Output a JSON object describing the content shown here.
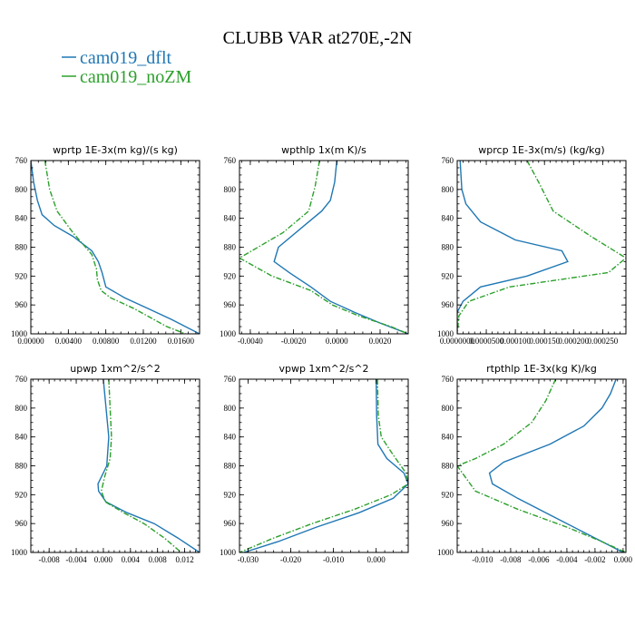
{
  "figure": {
    "title": "CLUBB VAR at270E,-2N",
    "legend": [
      {
        "label": "cam019_dflt",
        "color": "#1f77b4",
        "dash": "solid"
      },
      {
        "label": "cam019_noZM",
        "color": "#2ca02c",
        "dash": "dashdot"
      }
    ]
  },
  "chart_data": [
    {
      "type": "line",
      "title": "wprtp  1E-3x(m kg)/(s kg)",
      "xlim": [
        0,
        0.018
      ],
      "ylim": [
        760,
        1000
      ],
      "y_inverted": true,
      "xticks": [
        0,
        0.004,
        0.008,
        0.012,
        0.016
      ],
      "xtick_labels": [
        "0.00000",
        "0.00400",
        "0.00800",
        "0.01200",
        "0.01600"
      ],
      "yticks": [
        760,
        800,
        840,
        880,
        920,
        960,
        1000
      ],
      "series": [
        {
          "name": "cam019_dflt",
          "x": [
            0.0,
            0.0003,
            0.0007,
            0.0012,
            0.0025,
            0.0045,
            0.0065,
            0.0072,
            0.0076,
            0.008,
            0.01,
            0.0125,
            0.015,
            0.018
          ],
          "y": [
            760,
            790,
            815,
            835,
            850,
            865,
            885,
            900,
            915,
            935,
            950,
            965,
            980,
            1000
          ]
        },
        {
          "name": "cam019_noZM",
          "x": [
            0.0015,
            0.002,
            0.0028,
            0.0045,
            0.0065,
            0.007,
            0.0071,
            0.0075,
            0.0085,
            0.011,
            0.0145,
            0.0165
          ],
          "y": [
            760,
            800,
            830,
            860,
            890,
            910,
            925,
            940,
            950,
            965,
            990,
            1000
          ]
        }
      ]
    },
    {
      "type": "line",
      "title": "wpthlp  1x(m K)/s",
      "xlim": [
        -0.0045,
        0.0033
      ],
      "ylim": [
        760,
        1000
      ],
      "y_inverted": true,
      "xticks": [
        -0.004,
        -0.002,
        0.0,
        0.002
      ],
      "xtick_labels": [
        "-0.0040",
        "-0.0020",
        "0.0000",
        "0.0020"
      ],
      "yticks": [
        760,
        800,
        840,
        880,
        920,
        960,
        1000
      ],
      "series": [
        {
          "name": "cam019_dflt",
          "x": [
            0.0,
            -0.0001,
            -0.0003,
            -0.0007,
            -0.0015,
            -0.0027,
            -0.0029,
            -0.0022,
            -0.0012,
            -0.0003,
            0.0008,
            0.002,
            0.0033
          ],
          "y": [
            760,
            790,
            815,
            830,
            850,
            880,
            900,
            915,
            935,
            955,
            970,
            985,
            1000
          ]
        },
        {
          "name": "cam019_noZM",
          "x": [
            -0.0008,
            -0.001,
            -0.0013,
            -0.0025,
            -0.0045,
            -0.003,
            -0.0012,
            -0.0002,
            0.001,
            0.0025,
            0.0033
          ],
          "y": [
            760,
            795,
            830,
            860,
            895,
            920,
            940,
            960,
            975,
            990,
            1000
          ]
        }
      ]
    },
    {
      "type": "line",
      "title": "wprcp  1E-3x(m/s) (kg/kg)",
      "xlim": [
        0,
        0.00029
      ],
      "ylim": [
        760,
        1000
      ],
      "y_inverted": true,
      "xticks": [
        0,
        5e-05,
        0.0001,
        0.00015,
        0.0002,
        0.00025
      ],
      "xtick_labels": [
        "0.0000000",
        "0.0000500",
        "0.000100",
        "0.000150",
        "0.000200",
        "0.000250"
      ],
      "yticks": [
        760,
        800,
        840,
        880,
        920,
        960,
        1000
      ],
      "series": [
        {
          "name": "cam019_dflt",
          "x": [
            5e-06,
            8e-06,
            1.5e-05,
            4e-05,
            0.0001,
            0.00018,
            0.00019,
            0.00012,
            4e-05,
            1e-05,
            0.0,
            0.0
          ],
          "y": [
            760,
            800,
            820,
            845,
            870,
            885,
            900,
            920,
            935,
            955,
            970,
            1000
          ]
        },
        {
          "name": "cam019_noZM",
          "x": [
            0.00012,
            0.00014,
            0.000165,
            0.00023,
            0.00029,
            0.00026,
            9e-05,
            2e-05,
            3e-06,
            0.0
          ],
          "y": [
            760,
            790,
            830,
            865,
            895,
            915,
            935,
            955,
            975,
            1000
          ]
        }
      ]
    },
    {
      "type": "line",
      "title": "upwp  1xm^2/s^2",
      "xlim": [
        -0.0107,
        0.0142
      ],
      "ylim": [
        760,
        1000
      ],
      "y_inverted": true,
      "xticks": [
        -0.008,
        -0.004,
        0.0,
        0.004,
        0.008,
        0.012
      ],
      "xtick_labels": [
        "-0.008",
        "-0.004",
        "0.000",
        "0.004",
        "0.008",
        "0.012"
      ],
      "yticks": [
        760,
        800,
        840,
        880,
        920,
        960,
        1000
      ],
      "series": [
        {
          "name": "cam019_dflt",
          "x": [
            0.0,
            0.0004,
            0.0008,
            0.0005,
            -0.0008,
            -0.0007,
            0.0004,
            0.0035,
            0.0075,
            0.011,
            0.0142
          ],
          "y": [
            760,
            800,
            840,
            880,
            905,
            915,
            930,
            945,
            960,
            980,
            1000
          ]
        },
        {
          "name": "cam019_noZM",
          "x": [
            0.0008,
            0.001,
            0.0012,
            0.001,
            0.0002,
            -0.0003,
            0.0003,
            0.003,
            0.006,
            0.009,
            0.0115
          ],
          "y": [
            760,
            800,
            840,
            870,
            895,
            915,
            930,
            945,
            960,
            980,
            1000
          ]
        }
      ]
    },
    {
      "type": "line",
      "title": "vpwp  1xm^2/s^2",
      "xlim": [
        -0.032,
        0.0075
      ],
      "ylim": [
        760,
        1000
      ],
      "y_inverted": true,
      "xticks": [
        -0.03,
        -0.02,
        -0.01,
        0.0
      ],
      "xtick_labels": [
        "-0.030",
        "-0.020",
        "-0.010",
        "0.000"
      ],
      "yticks": [
        760,
        800,
        840,
        880,
        920,
        960,
        1000
      ],
      "series": [
        {
          "name": "cam019_dflt",
          "x": [
            0.0,
            0.0001,
            0.0004,
            0.0025,
            0.0065,
            0.0075,
            0.004,
            -0.004,
            -0.014,
            -0.023,
            -0.031
          ],
          "y": [
            760,
            810,
            850,
            870,
            890,
            905,
            925,
            945,
            965,
            985,
            1000
          ]
        },
        {
          "name": "cam019_noZM",
          "x": [
            0.0003,
            0.0005,
            0.0012,
            0.004,
            0.007,
            0.0075,
            0.0035,
            -0.005,
            -0.015,
            -0.024,
            -0.032
          ],
          "y": [
            760,
            810,
            840,
            865,
            890,
            905,
            920,
            940,
            960,
            980,
            1000
          ]
        }
      ]
    },
    {
      "type": "line",
      "title": "rtpthlp  1E-3x(kg K)/kg",
      "xlim": [
        -0.0118,
        0.0002
      ],
      "ylim": [
        760,
        1000
      ],
      "y_inverted": true,
      "xticks": [
        -0.01,
        -0.008,
        -0.006,
        -0.004,
        -0.002,
        0.0
      ],
      "xtick_labels": [
        "-0.010",
        "-0.008",
        "-0.006",
        "-0.004",
        "-0.002",
        "0.000"
      ],
      "yticks": [
        760,
        800,
        840,
        880,
        920,
        960,
        1000
      ],
      "series": [
        {
          "name": "cam019_dflt",
          "x": [
            -0.0005,
            -0.0009,
            -0.0015,
            -0.0028,
            -0.0052,
            -0.0085,
            -0.0095,
            -0.0093,
            -0.0075,
            -0.005,
            -0.0025,
            0.0
          ],
          "y": [
            760,
            780,
            800,
            825,
            850,
            875,
            890,
            905,
            925,
            950,
            975,
            1000
          ]
        },
        {
          "name": "cam019_noZM",
          "x": [
            -0.0048,
            -0.0055,
            -0.0065,
            -0.0085,
            -0.0105,
            -0.0118,
            -0.0105,
            -0.0075,
            -0.004,
            -0.0015,
            0.0002
          ],
          "y": [
            760,
            790,
            820,
            850,
            870,
            880,
            915,
            940,
            965,
            985,
            1000
          ]
        }
      ]
    }
  ]
}
